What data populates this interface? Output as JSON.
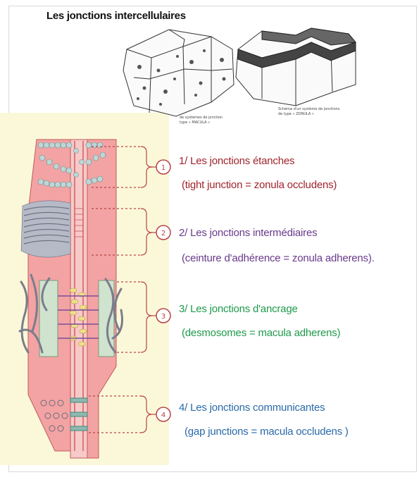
{
  "title": "Les jonctions intercellulaires",
  "sketch_captions": {
    "left": [
      "de systèmes de jonction",
      "type « MACULA »"
    ],
    "right": [
      "Schéma d'un système de jonctions",
      "de type « ZONULA »"
    ]
  },
  "junctions": [
    {
      "number": "1",
      "name": "1/ Les jonctions étanches",
      "detail": "(tight junction = zonula occludens)",
      "color": "#a0242c"
    },
    {
      "number": "2",
      "name": "2/ Les jonctions intermédiaires",
      "detail": "(ceinture d'adhérence = zonula adherens).",
      "color": "#6a3a8c"
    },
    {
      "number": "3",
      "name": "3/ Les jonctions d'ancrage",
      "detail": "(desmosomes = macula adherens)",
      "color": "#1f9a4c"
    },
    {
      "number": "4",
      "name": "4/ Les jonctions communicantes",
      "detail": "(gap junctions = macula occludens )",
      "color": "#2a6aa8"
    }
  ],
  "colors": {
    "cell": "#f3a3a3",
    "cell_dark": "#e06464",
    "bracket": "#b84444",
    "tight_beads": "#bfd6d6",
    "filaments": "#8a8a9a",
    "desmosome_plaque": "#cfe3cf",
    "desmosome_core": "#f0e08a",
    "gap_link": "#3c8c7a",
    "background_panel": "#fbf8d9"
  }
}
